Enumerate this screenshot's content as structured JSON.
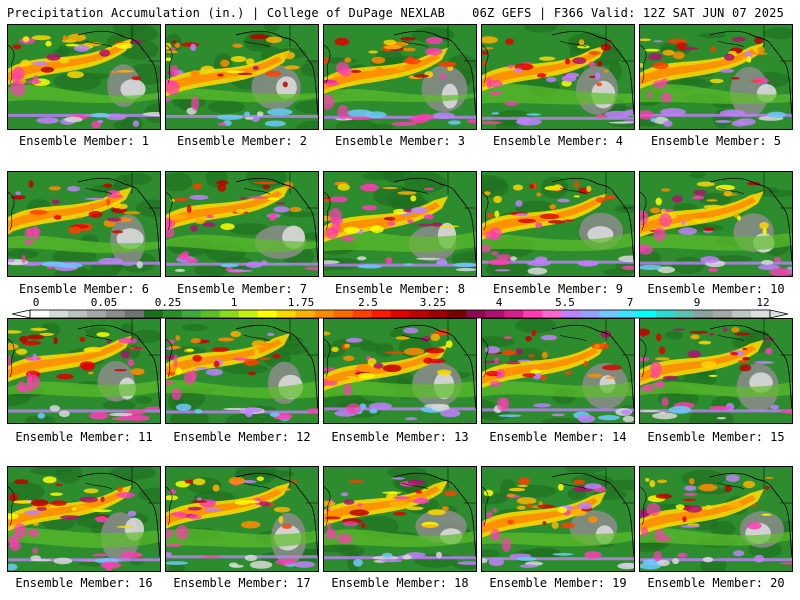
{
  "header": {
    "title_left": "Precipitation Accumulation (in.) | College of DuPage NEXLAB",
    "title_right": "06Z GEFS | F366 Valid: 12Z SAT JUN 07 2025"
  },
  "members": [
    {
      "label": "Ensemble Member: 1"
    },
    {
      "label": "Ensemble Member: 2"
    },
    {
      "label": "Ensemble Member: 3"
    },
    {
      "label": "Ensemble Member: 4"
    },
    {
      "label": "Ensemble Member: 5"
    },
    {
      "label": "Ensemble Member: 6"
    },
    {
      "label": "Ensemble Member: 7"
    },
    {
      "label": "Ensemble Member: 8"
    },
    {
      "label": "Ensemble Member: 9"
    },
    {
      "label": "Ensemble Member: 10"
    },
    {
      "label": "Ensemble Member: 11"
    },
    {
      "label": "Ensemble Member: 12"
    },
    {
      "label": "Ensemble Member: 13"
    },
    {
      "label": "Ensemble Member: 14"
    },
    {
      "label": "Ensemble Member: 15"
    },
    {
      "label": "Ensemble Member: 16"
    },
    {
      "label": "Ensemble Member: 17"
    },
    {
      "label": "Ensemble Member: 18"
    },
    {
      "label": "Ensemble Member: 19"
    },
    {
      "label": "Ensemble Member: 20"
    }
  ],
  "legend": {
    "tick_labels": [
      "0",
      "0.05",
      "0.25",
      "1",
      "1.75",
      "2.5",
      "3.25",
      "4",
      "5.5",
      "7",
      "9",
      "12"
    ],
    "colors": [
      "#ffffff",
      "#d9d9d9",
      "#bfbfbf",
      "#a6a6a6",
      "#8c8c8c",
      "#737373",
      "#1e6e1e",
      "#2d8c2d",
      "#3fa83f",
      "#5cbf2a",
      "#8ed81c",
      "#c6ee16",
      "#ffff00",
      "#ffd700",
      "#ffb000",
      "#ff8c00",
      "#ff6a00",
      "#ff4000",
      "#ff1a00",
      "#e00000",
      "#bf0000",
      "#9e0000",
      "#7a0000",
      "#8b0a50",
      "#b0106e",
      "#d81e8c",
      "#ff3cb4",
      "#ff66d0",
      "#c080ff",
      "#9aa0ff",
      "#70c8ff",
      "#40e0ff",
      "#00ffff",
      "#30d8d0",
      "#60c0b0",
      "#8ca0a0",
      "#a8a8a8",
      "#c4c4c4",
      "#dedede"
    ]
  }
}
